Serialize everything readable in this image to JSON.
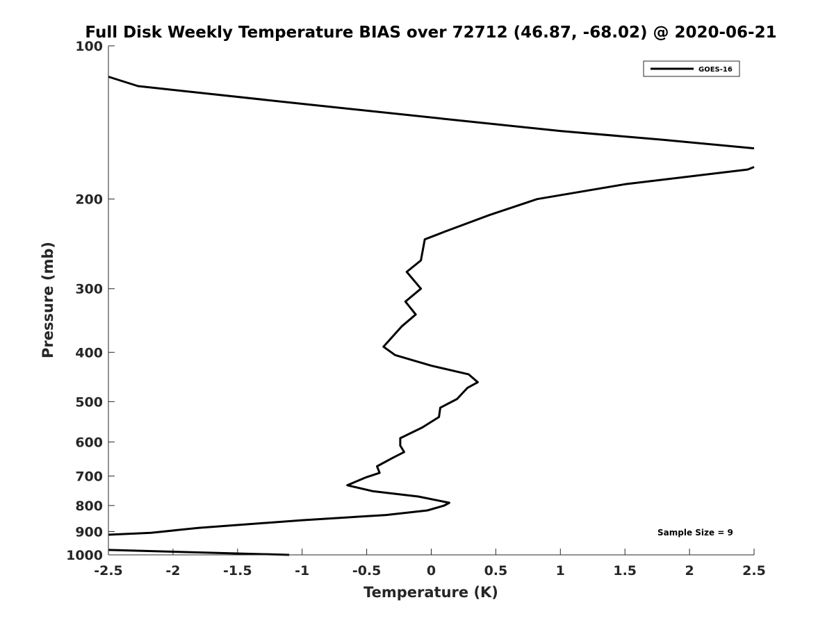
{
  "chart_data": {
    "type": "line",
    "title": "Full Disk Weekly Temperature BIAS over 72712 (46.87, -68.02) @ 2020-06-21",
    "xlabel": "Temperature (K)",
    "ylabel": "Pressure (mb)",
    "xlim": [
      -2.5,
      2.5
    ],
    "ylim": [
      1000,
      100
    ],
    "yscale": "log",
    "yreversed": true,
    "x_ticks": [
      "-2.5",
      "-2",
      "-1.5",
      "-1",
      "-0.5",
      "0",
      "0.5",
      "1",
      "1.5",
      "2",
      "2.5"
    ],
    "y_ticks": [
      "100",
      "200",
      "300",
      "400",
      "500",
      "600",
      "700",
      "800",
      "900",
      "1000"
    ],
    "grid": false,
    "legend": {
      "entries": [
        "GOES-16"
      ],
      "placement": "top-right"
    },
    "annotation": "Sample Size = 9",
    "series": [
      {
        "name": "GOES-16",
        "color": "#000000",
        "segments": [
          [
            [
              -2.5,
              115
            ],
            [
              -2.27,
              120
            ],
            [
              -1.0,
              130
            ],
            [
              0.2,
              140
            ],
            [
              1.0,
              147
            ],
            [
              1.8,
              153
            ],
            [
              2.5,
              159
            ]
          ],
          [
            [
              2.5,
              173
            ],
            [
              2.45,
              175
            ],
            [
              1.5,
              187
            ],
            [
              0.82,
              200
            ],
            [
              0.45,
              215
            ],
            [
              0.1,
              232
            ],
            [
              -0.05,
              240
            ],
            [
              -0.08,
              264
            ],
            [
              -0.19,
              278
            ],
            [
              -0.08,
              300
            ],
            [
              -0.2,
              318
            ],
            [
              -0.12,
              337
            ],
            [
              -0.23,
              356
            ],
            [
              -0.37,
              390
            ],
            [
              -0.28,
              405
            ],
            [
              0.0,
              425
            ],
            [
              0.29,
              442
            ],
            [
              0.36,
              458
            ],
            [
              0.28,
              470
            ],
            [
              0.2,
              494
            ],
            [
              0.07,
              514
            ],
            [
              0.06,
              536
            ],
            [
              -0.07,
              562
            ],
            [
              -0.24,
              590
            ],
            [
              -0.24,
              610
            ],
            [
              -0.21,
              628
            ],
            [
              -0.3,
              645
            ],
            [
              -0.42,
              670
            ],
            [
              -0.4,
              690
            ],
            [
              -0.51,
              705
            ],
            [
              -0.65,
              730
            ],
            [
              -0.45,
              750
            ],
            [
              -0.1,
              768
            ],
            [
              0.14,
              790
            ],
            [
              0.1,
              800
            ],
            [
              -0.03,
              818
            ],
            [
              -0.35,
              835
            ],
            [
              -1.0,
              855
            ],
            [
              -1.8,
              885
            ],
            [
              -2.17,
              905
            ],
            [
              -2.5,
              913
            ]
          ],
          [
            [
              -2.5,
              978
            ],
            [
              -1.1,
              1000
            ]
          ]
        ]
      }
    ]
  }
}
